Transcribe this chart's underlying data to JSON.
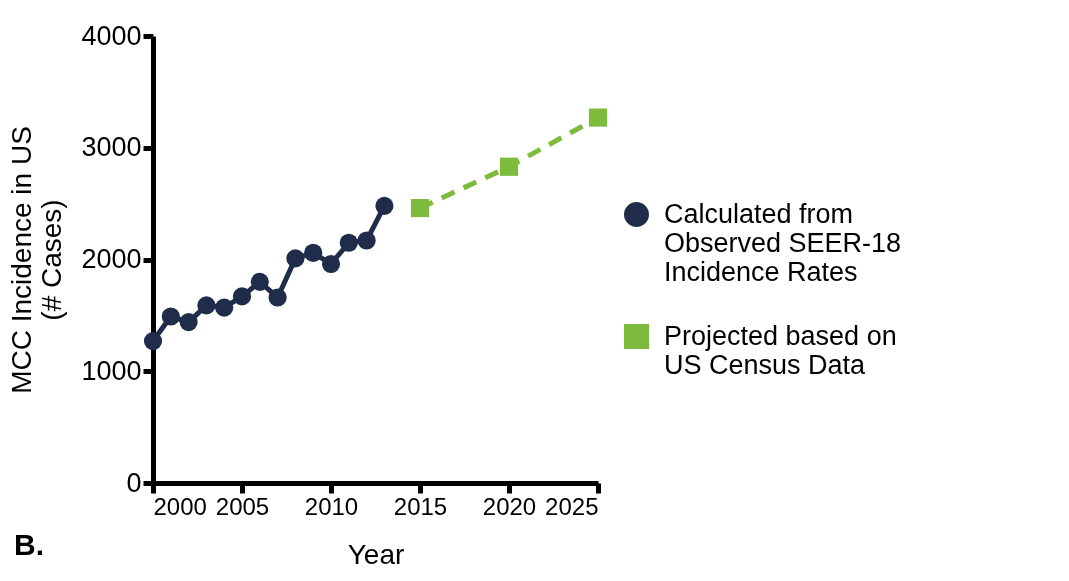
{
  "chart_data": {
    "type": "line",
    "xlabel": "Year",
    "ylabel": "MCC Incidence in US (# Cases)",
    "annotations": [
      "B."
    ],
    "xlim": [
      2000,
      2025
    ],
    "xticks": [
      2000,
      2005,
      2010,
      2015,
      2020,
      2025
    ],
    "ylim": [
      0,
      4000
    ],
    "yticks": [
      0,
      1000,
      2000,
      3000,
      4000
    ],
    "grid": false,
    "legend": "right",
    "series": [
      {
        "name": "Calculated from Observed SEER-18 Incidence Rates",
        "color": "#1f2d4a",
        "marker": "circle",
        "line_style": "solid",
        "x": [
          2000,
          2001,
          2002,
          2003,
          2004,
          2005,
          2006,
          2007,
          2008,
          2009,
          2010,
          2011,
          2012,
          2013
        ],
        "values": [
          1270,
          1490,
          1440,
          1590,
          1570,
          1670,
          1800,
          1660,
          2010,
          2060,
          1960,
          2150,
          2170,
          2480
        ]
      },
      {
        "name": "Projected based on US Census Data",
        "color": "#7dbb3c",
        "marker": "square",
        "line_style": "dashed",
        "x": [
          2015,
          2020,
          2025
        ],
        "values": [
          2460,
          2830,
          3270
        ]
      }
    ]
  }
}
